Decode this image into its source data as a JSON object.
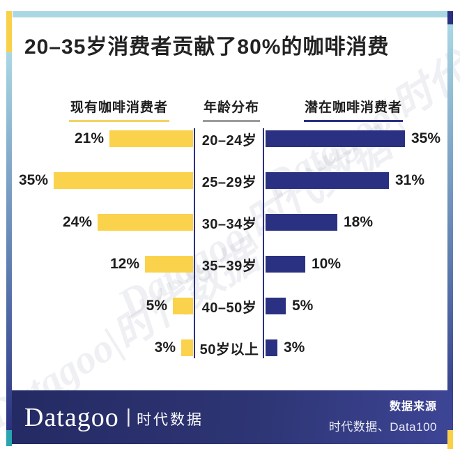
{
  "title": "20–35岁消费者贡献了80%的咖啡消费",
  "chart_data": {
    "type": "bar",
    "variant": "diverging-horizontal-butterfly",
    "title": "20–35岁消费者贡献了80%的咖啡消费",
    "categories": [
      "20–24岁",
      "25–29岁",
      "30–34岁",
      "35–39岁",
      "40–50岁",
      "50岁以上"
    ],
    "center_axis_label": "年龄分布",
    "series": [
      {
        "name": "现有咖啡消费者",
        "side": "left",
        "color": "#FBD24B",
        "values": [
          21,
          35,
          24,
          12,
          5,
          3
        ],
        "labels": [
          "21%",
          "35%",
          "24%",
          "12%",
          "5%",
          "3%"
        ]
      },
      {
        "name": "潜在咖啡消费者",
        "side": "right",
        "color": "#2B3182",
        "values": [
          35,
          31,
          18,
          10,
          5,
          3
        ],
        "labels": [
          "35%",
          "31%",
          "18%",
          "10%",
          "5%",
          "3%"
        ]
      }
    ],
    "value_suffix": "%",
    "xlim": [
      0,
      35
    ],
    "grid": false,
    "legend_position": "column-headers"
  },
  "footer": {
    "brand": "Datagoo",
    "divider": "|",
    "brand_cn": "时代数据",
    "source_label": "数据来源",
    "source_value": "时代数据、Data100"
  },
  "watermark": "Datagoo|时代数据",
  "colors": {
    "bar_yellow": "#FBD24B",
    "bar_navy": "#2B3182",
    "frame_light_blue": "#A9D8E4",
    "accent_teal": "#29A5B0",
    "accent_yellow": "#F9D148",
    "underline_gray": "#9B9B9B",
    "footer_navy_dark": "#242A63",
    "footer_navy_light": "#3D4596",
    "text_dark": "#1D1D1D"
  }
}
